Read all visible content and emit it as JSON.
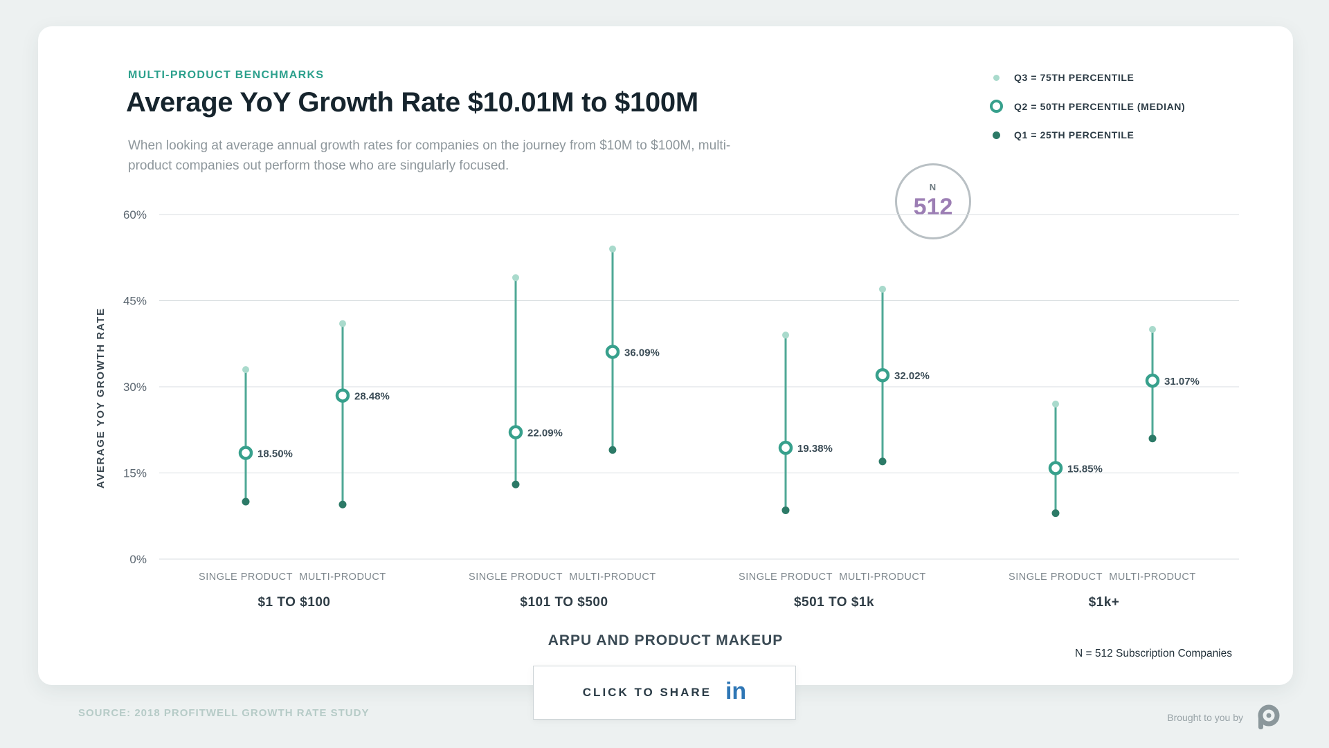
{
  "page": {
    "background": "#edf1f1"
  },
  "header": {
    "eyebrow": "MULTI-PRODUCT BENCHMARKS",
    "title": "Average YoY Growth Rate $10.01M to $100M",
    "subtitle": "When looking at average annual growth rates for companies on the journey from $10M to $100M, multi-product companies out perform those who are singularly focused."
  },
  "legend": {
    "position": "top-right",
    "items": [
      {
        "label": "Q3 = 75TH PERCENTILE",
        "marker": "dot-light"
      },
      {
        "label": "Q2 = 50TH PERCENTILE (MEDIAN)",
        "marker": "ring"
      },
      {
        "label": "Q1 = 25TH PERCENTILE",
        "marker": "dot-dark"
      }
    ]
  },
  "badge": {
    "label": "N",
    "value": "512"
  },
  "chart_data": {
    "type": "dot-range",
    "title": "Average YoY Growth Rate $10.01M to $100M",
    "xlabel": "ARPU AND PRODUCT MAKEUP",
    "ylabel": "AVERAGE YOY GROWTH RATE",
    "ylim": [
      0,
      60
    ],
    "yticks": [
      0,
      15,
      30,
      45,
      60
    ],
    "ytick_suffix": "%",
    "grid": true,
    "groups": [
      {
        "label": "$1 TO $100",
        "points": [
          {
            "category": "SINGLE PRODUCT",
            "q1": 10,
            "q2": 18.5,
            "q3": 33,
            "q2_label": "18.50%"
          },
          {
            "category": "MULTI-PRODUCT",
            "q1": 9.5,
            "q2": 28.48,
            "q3": 41,
            "q2_label": "28.48%"
          }
        ]
      },
      {
        "label": "$101 TO $500",
        "points": [
          {
            "category": "SINGLE PRODUCT",
            "q1": 13,
            "q2": 22.09,
            "q3": 49,
            "q2_label": "22.09%"
          },
          {
            "category": "MULTI-PRODUCT",
            "q1": 19,
            "q2": 36.09,
            "q3": 54,
            "q2_label": "36.09%"
          }
        ]
      },
      {
        "label": "$501 TO $1k",
        "points": [
          {
            "category": "SINGLE PRODUCT",
            "q1": 8.5,
            "q2": 19.38,
            "q3": 39,
            "q2_label": "19.38%"
          },
          {
            "category": "MULTI-PRODUCT",
            "q1": 17,
            "q2": 32.02,
            "q3": 47,
            "q2_label": "32.02%"
          }
        ]
      },
      {
        "label": "$1k+",
        "points": [
          {
            "category": "SINGLE PRODUCT",
            "q1": 8,
            "q2": 15.85,
            "q3": 27,
            "q2_label": "15.85%"
          },
          {
            "category": "MULTI-PRODUCT",
            "q1": 21,
            "q2": 31.07,
            "q3": 40,
            "q2_label": "31.07%"
          }
        ]
      }
    ]
  },
  "share": {
    "label": "CLICK TO SHARE",
    "icon": "linkedin-icon",
    "icon_text": "in"
  },
  "footer": {
    "note": "N = 512 Subscription Companies",
    "source": "SOURCE: 2018 PROFITWELL GROWTH RATE STUDY",
    "brought_by": "Brought to you by"
  },
  "colors": {
    "accent": "#2ba08c",
    "stem": "#4fa896",
    "q3_dot": "#a9dacc",
    "q2_ring": "#37a08c",
    "q1_dot": "#2c7a67",
    "median_label": "#3c4d57",
    "gridline": "#d8dde0",
    "tick": "#5c6771",
    "category": "#7e878d",
    "group_label": "#2f3d46",
    "n_value": "#9c7eb4",
    "linkedin": "#2e76b5"
  }
}
